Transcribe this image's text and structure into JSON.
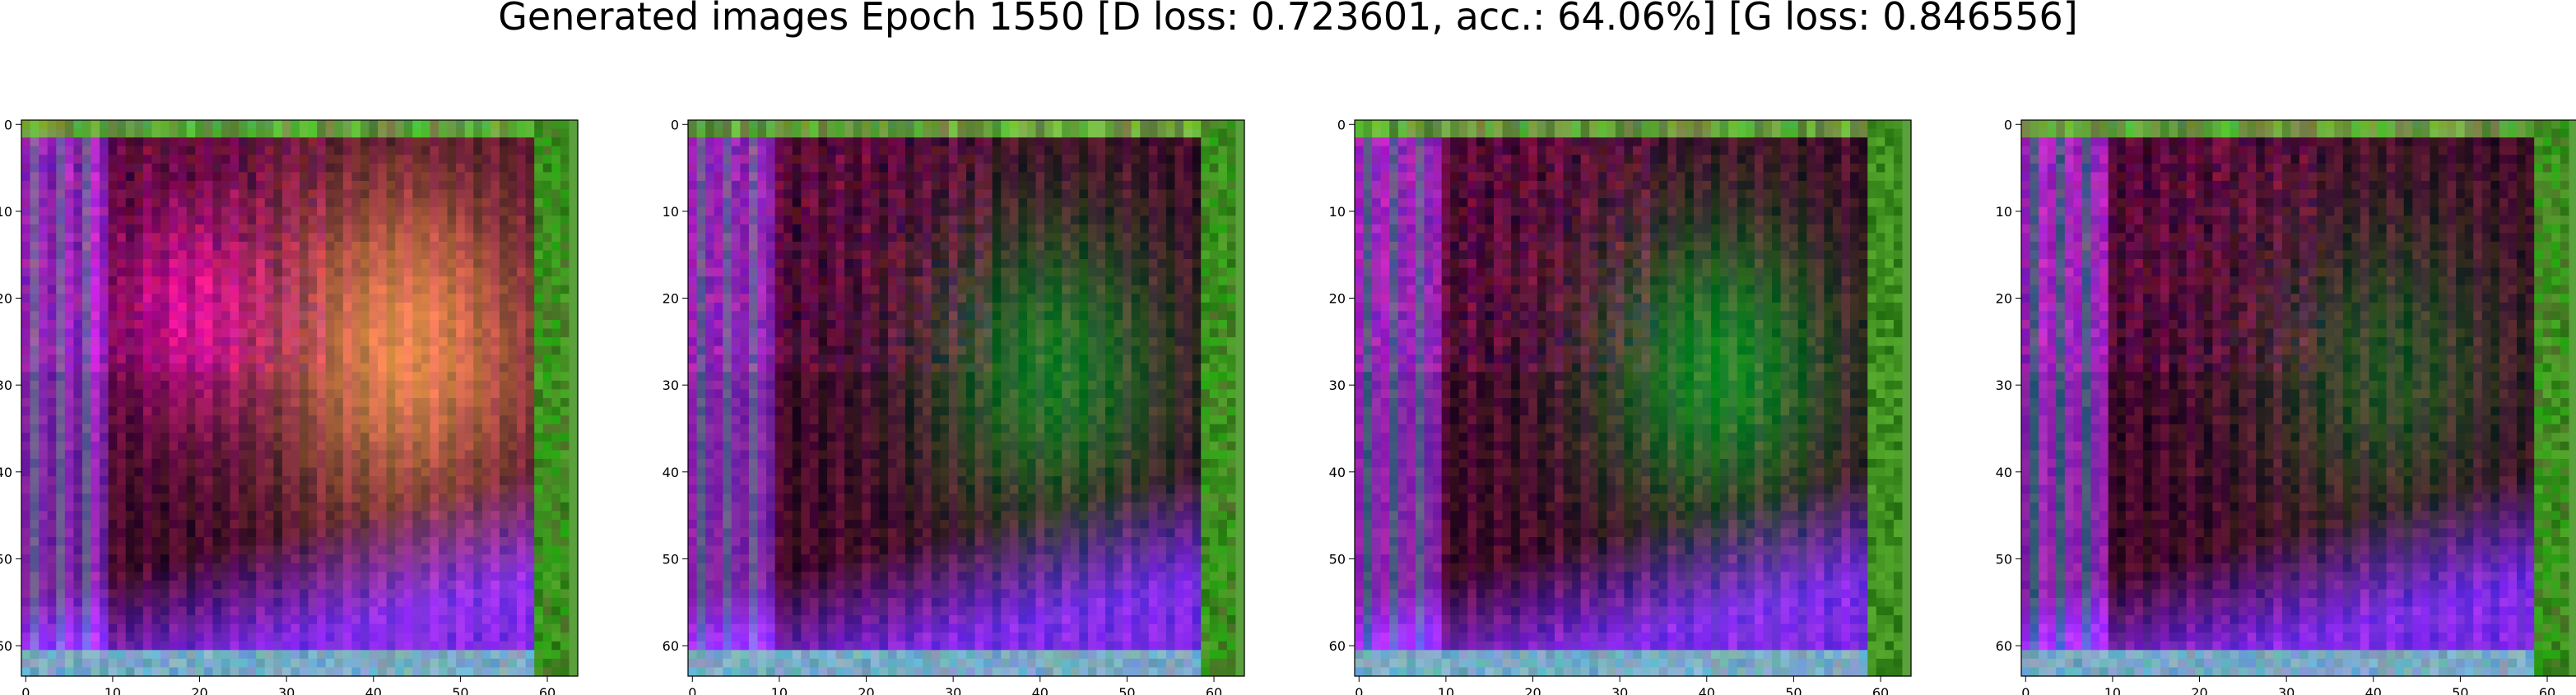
{
  "figure": {
    "title": "Generated images Epoch 1550 [D loss: 0.723601, acc.: 64.06%] [G loss: 0.846556]"
  },
  "chart_data": [
    {
      "type": "heatmap",
      "title": "",
      "xlabel": "",
      "ylabel": "",
      "xlim": [
        -0.5,
        63.5
      ],
      "ylim": [
        63.5,
        -0.5
      ],
      "xticks": [
        0,
        10,
        20,
        30,
        40,
        50,
        60
      ],
      "yticks": [
        0,
        10,
        20,
        30,
        40,
        50,
        60
      ],
      "grid": false,
      "variant": 0
    },
    {
      "type": "heatmap",
      "title": "",
      "xlabel": "",
      "ylabel": "",
      "xlim": [
        -0.5,
        63.5
      ],
      "ylim": [
        63.5,
        -0.5
      ],
      "xticks": [
        0,
        10,
        20,
        30,
        40,
        50,
        60
      ],
      "yticks": [
        0,
        10,
        20,
        30,
        40,
        50,
        60
      ],
      "grid": false,
      "variant": 1
    },
    {
      "type": "heatmap",
      "title": "",
      "xlabel": "",
      "ylabel": "",
      "xlim": [
        -0.5,
        63.5
      ],
      "ylim": [
        63.5,
        -0.5
      ],
      "xticks": [
        0,
        10,
        20,
        30,
        40,
        50,
        60
      ],
      "yticks": [
        0,
        10,
        20,
        30,
        40,
        50,
        60
      ],
      "grid": false,
      "variant": 2
    },
    {
      "type": "heatmap",
      "title": "",
      "xlabel": "",
      "ylabel": "",
      "xlim": [
        -0.5,
        63.5
      ],
      "ylim": [
        63.5,
        -0.5
      ],
      "xticks": [
        0,
        10,
        20,
        30,
        40,
        50,
        60
      ],
      "yticks": [
        0,
        10,
        20,
        30,
        40,
        50,
        60
      ],
      "grid": false,
      "variant": 3
    }
  ]
}
